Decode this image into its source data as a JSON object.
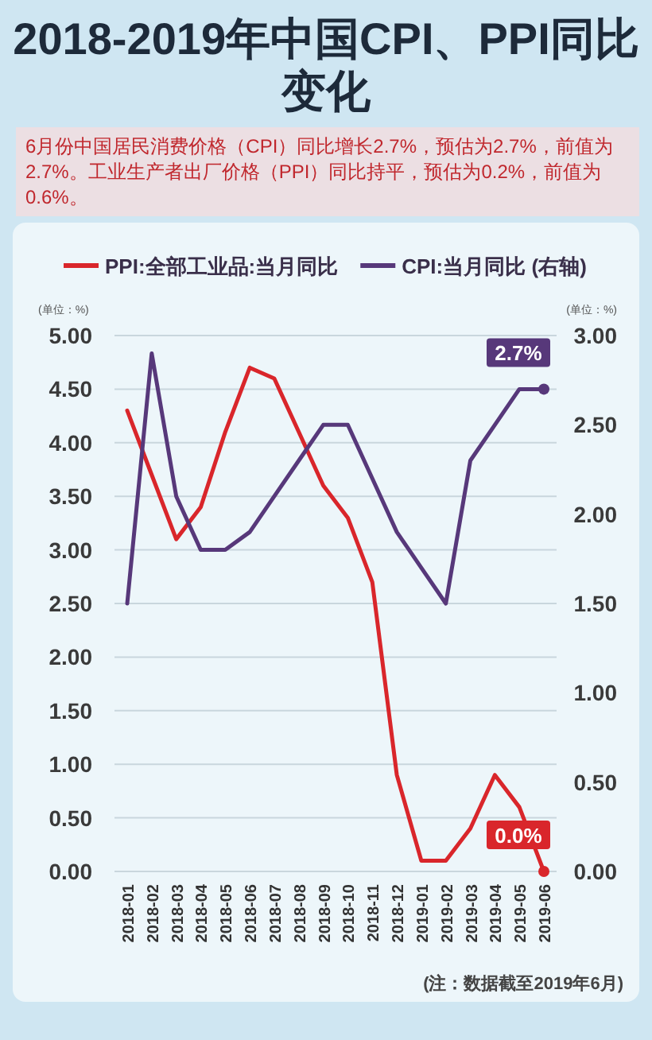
{
  "chart_data": {
    "type": "line",
    "title": "2018-2019年中国CPI、PPI同比变化",
    "subtitle": "6月份中国居民消费价格（CPI）同比增长2.7%，预估为2.7%，前值为2.7%。工业生产者出厂价格（PPI）同比持平，预估为0.2%，前值为0.6%。",
    "categories": [
      "2018-01",
      "2018-02",
      "2018-03",
      "2018-04",
      "2018-05",
      "2018-06",
      "2018-07",
      "2018-08",
      "2018-09",
      "2018-10",
      "2018-11",
      "2018-12",
      "2019-01",
      "2019-02",
      "2019-03",
      "2019-04",
      "2019-05",
      "2019-06"
    ],
    "series": [
      {
        "name": "PPI:全部工业品:当月同比",
        "color": "#d9262b",
        "values": [
          4.3,
          3.7,
          3.1,
          3.4,
          4.1,
          4.7,
          4.6,
          4.1,
          3.6,
          3.3,
          2.7,
          0.9,
          0.1,
          0.1,
          0.4,
          0.9,
          0.6,
          0.0
        ],
        "value_labels": [
          null,
          null,
          null,
          null,
          null,
          null,
          null,
          null,
          null,
          null,
          null,
          null,
          null,
          null,
          null,
          null,
          null,
          "0.0%"
        ]
      },
      {
        "name": "CPI:当月同比 (右轴)",
        "color": "#57387a",
        "axis": "y2",
        "values": [
          1.5,
          2.9,
          2.1,
          1.8,
          1.8,
          1.9,
          2.1,
          2.3,
          2.5,
          2.5,
          2.2,
          1.9,
          1.7,
          1.5,
          2.3,
          2.5,
          2.7,
          2.7
        ],
        "value_labels": [
          null,
          null,
          null,
          null,
          null,
          null,
          null,
          null,
          null,
          null,
          null,
          null,
          null,
          null,
          null,
          null,
          null,
          "2.7%"
        ]
      }
    ],
    "ylabel": "(单位：%)",
    "y2label": "(单位：%)",
    "ylim": [
      0,
      5
    ],
    "yticks": [
      {
        "value": 0,
        "label": "0.00"
      },
      {
        "value": 0.5,
        "label": "0.50"
      },
      {
        "value": 1,
        "label": "1.00"
      },
      {
        "value": 1.5,
        "label": "1.50"
      },
      {
        "value": 2,
        "label": "2.00"
      },
      {
        "value": 2.5,
        "label": "2.50"
      },
      {
        "value": 3,
        "label": "3.00"
      },
      {
        "value": 3.5,
        "label": "3.50"
      },
      {
        "value": 4,
        "label": "4.00"
      },
      {
        "value": 4.5,
        "label": "4.50"
      },
      {
        "value": 5,
        "label": "5.00"
      }
    ],
    "y2lim": [
      0,
      3
    ],
    "y2ticks": [
      {
        "value": 0,
        "label": "0.00"
      },
      {
        "value": 0.5,
        "label": "0.50"
      },
      {
        "value": 1,
        "label": "1.00"
      },
      {
        "value": 1.5,
        "label": "1.50"
      },
      {
        "value": 2,
        "label": "2.00"
      },
      {
        "value": 2.5,
        "label": "2.50"
      },
      {
        "value": 3,
        "label": "3.00"
      }
    ],
    "grid": "y",
    "legend": "top",
    "marker": "none",
    "line_style": "solid",
    "annotations": [
      "(注：数据截至2019年6月)"
    ]
  }
}
